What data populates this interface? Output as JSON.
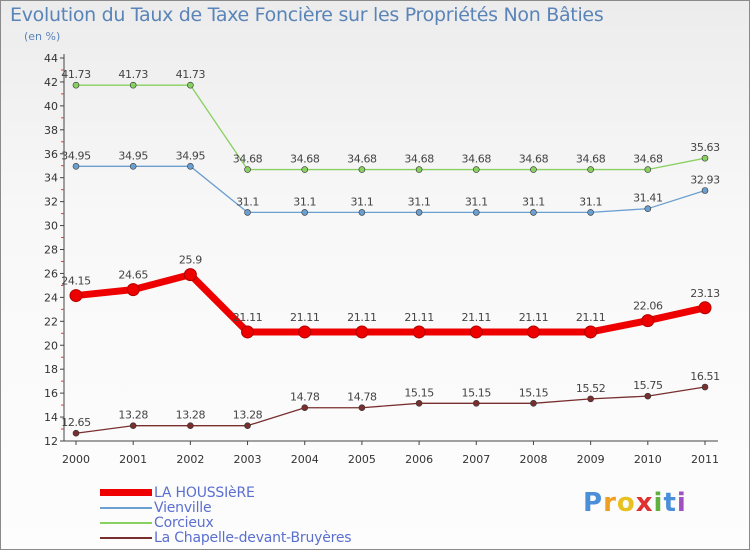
{
  "chart_data": {
    "type": "line",
    "title": "Evolution du Taux de Taxe Foncière sur les Propriétés Non Bâties",
    "unit_label": "(en %)",
    "xlabel": "",
    "ylabel": "",
    "categories": [
      "2000",
      "2001",
      "2002",
      "2003",
      "2004",
      "2005",
      "2006",
      "2007",
      "2008",
      "2009",
      "2010",
      "2011"
    ],
    "ylim": [
      12,
      44
    ],
    "yticks": [
      "12",
      "14",
      "16",
      "18",
      "20",
      "22",
      "24",
      "26",
      "28",
      "30",
      "32",
      "34",
      "36",
      "38",
      "40",
      "42",
      "44"
    ],
    "series": [
      {
        "name": "LA HOUSSIèRE",
        "color": "#ee0000",
        "values": [
          24.15,
          24.65,
          25.9,
          21.11,
          21.11,
          21.11,
          21.11,
          21.11,
          21.11,
          21.11,
          22.06,
          23.13
        ],
        "labels": [
          "24.15",
          "24.65",
          "25.9",
          "21.11",
          "21.11",
          "21.11",
          "21.11",
          "21.11",
          "21.11",
          "21.11",
          "22.06",
          "23.13"
        ]
      },
      {
        "name": "Vienville",
        "color": "#6b9fd0",
        "values": [
          34.95,
          34.95,
          34.95,
          31.1,
          31.1,
          31.1,
          31.1,
          31.1,
          31.1,
          31.1,
          31.41,
          32.93
        ],
        "labels": [
          "34.95",
          "34.95",
          "34.95",
          "31.1",
          "31.1",
          "31.1",
          "31.1",
          "31.1",
          "31.1",
          "31.1",
          "31.41",
          "32.93"
        ]
      },
      {
        "name": "Corcieux",
        "color": "#88d060",
        "values": [
          41.73,
          41.73,
          41.73,
          34.68,
          34.68,
          34.68,
          34.68,
          34.68,
          34.68,
          34.68,
          34.68,
          35.63
        ],
        "labels": [
          "41.73",
          "41.73",
          "41.73",
          "34.68",
          "34.68",
          "34.68",
          "34.68",
          "34.68",
          "34.68",
          "34.68",
          "34.68",
          "35.63"
        ]
      },
      {
        "name": "La Chapelle-devant-Bruyères",
        "color": "#7a2f2f",
        "values": [
          12.65,
          13.28,
          13.28,
          13.28,
          14.78,
          14.78,
          15.15,
          15.15,
          15.15,
          15.52,
          15.75,
          16.51
        ],
        "labels": [
          "12.65",
          "13.28",
          "13.28",
          "13.28",
          "14.78",
          "14.78",
          "15.15",
          "15.15",
          "15.15",
          "15.52",
          "15.75",
          "16.51"
        ]
      }
    ],
    "grid": false,
    "legend_position": "bottom-left"
  },
  "logo": {
    "letters": [
      "P",
      "r",
      "o",
      "x",
      "i",
      "t",
      "i"
    ]
  }
}
